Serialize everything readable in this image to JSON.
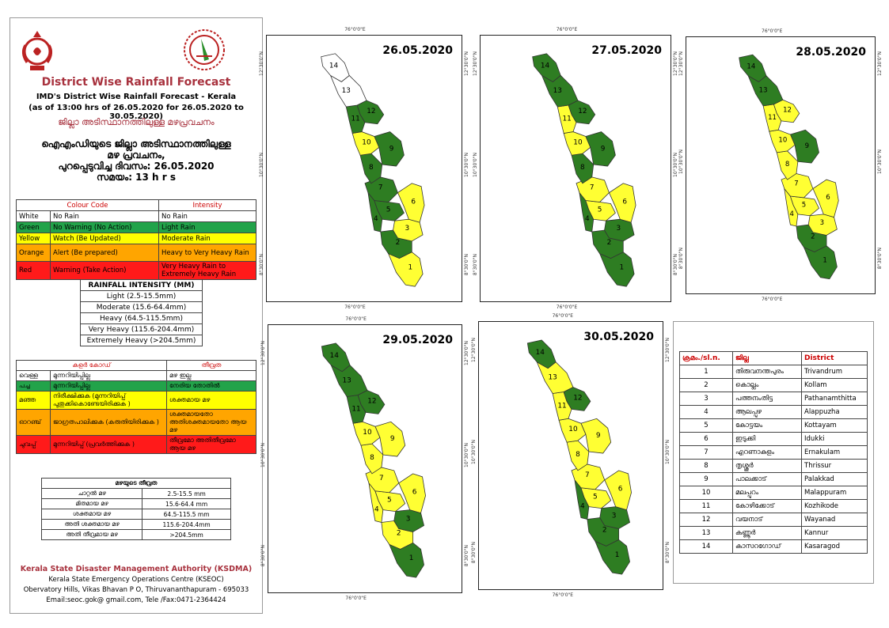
{
  "header": {
    "title": "District Wise Rainfall Forecast",
    "subtitle1": "IMD's District Wise Rainfall Forecast - Kerala",
    "subtitle2": "(as of 13:00 hrs of 26.05.2020  for 26.05.2020 to 30.05.2020)",
    "mal_title": "ജില്ലാ അടിസ്ഥാനത്തിലുള്ള മഴപ്രവചനം",
    "mal_line1": "ഐഎംഡിയുടെ ജില്ലാ  അടിസ്ഥാനത്തിലുള്ള",
    "mal_line2": "മഴ പ്രവചനം,",
    "mal_line3": "പുറപ്പെടുവിച്ച  ദിവസം: 26.05.2020",
    "mal_line4": "സമയം: 13 h r s"
  },
  "colour_table": {
    "h1": "Colour Code",
    "h2": "Intensity",
    "rows": [
      {
        "c": "White",
        "w": "No Rain",
        "i": "No Rain",
        "bg": "#ffffff"
      },
      {
        "c": "Green",
        "w": "No Warning (No Action)",
        "i": "Light Rain",
        "bg": "#22a34a"
      },
      {
        "c": "Yellow",
        "w": "Watch (Be Updated)",
        "i": "Moderate Rain",
        "bg": "#ffff00"
      },
      {
        "c": "Orange",
        "w": "Alert (Be prepared)",
        "i": "Heavy to Very Heavy Rain",
        "bg": "#ffa500"
      },
      {
        "c": "Red",
        "w": "Warning (Take Action)",
        "i": "Very Heavy Rain to Extremely Heavy Rain",
        "bg": "#ff1a1a"
      }
    ]
  },
  "intensity_table": {
    "head": "RAINFALL INTENSITY (MM)",
    "rows": [
      "Light (2.5-15.5mm)",
      "Moderate (15.6-64.4mm)",
      "Heavy (64.5-115.5mm)",
      "Very Heavy (115.6-204.4mm)",
      "Extremely Heavy (>204.5mm)"
    ]
  },
  "mal_colour_table": {
    "h1": "കളർ കോഡ്",
    "h2": "തീവ്രത",
    "rows": [
      {
        "c": "വെള്ള",
        "w": "മുന്നറിയിപ്പില്ല",
        "i": "മഴ ഇല്ല",
        "bg": "#ffffff"
      },
      {
        "c": "പച്ച",
        "w": "മുന്നറിയിപ്പില്ല",
        "i": "നേരിയ തോതിൽ",
        "bg": "#22a34a"
      },
      {
        "c": "മഞ്ഞ",
        "w": "നിരീക്ഷിക്കുക (മുന്നറിയിപ്പ് പുതുക്കികൊണ്ടേയിരിക്കുക )",
        "i": "ശക്തമായ മഴ",
        "bg": "#ffff00"
      },
      {
        "c": "ഓറഞ്ച്",
        "w": "ജാഗ്രതപാലിക്കുക (കരുതിയിരിക്കുക )",
        "i": "ശക്തമായതോ അതിശക്തമായതോ ആയ മഴ",
        "bg": "#ffa500"
      },
      {
        "c": "ചുവപ്പ്",
        "w": "മുന്നറിയിപ്പ് (പ്രവർത്തിക്കുക )",
        "i": "തീവ്രമോ അതിതീവ്രമോ ആയ മഴ",
        "bg": "#ff1a1a"
      }
    ]
  },
  "mal_intensity_table": {
    "head": "മഴയുടെ തീവ്രത",
    "rows": [
      {
        "n": "ചാറ്റൽ മഴ",
        "v": "2.5-15.5 mm"
      },
      {
        "n": "മിതമായ മഴ",
        "v": "15.6-64.4 mm"
      },
      {
        "n": "ശക്തമായ മഴ",
        "v": "64.5-115.5 mm"
      },
      {
        "n": "അതി ശക്തമായ മഴ",
        "v": "115.6-204.4mm"
      },
      {
        "n": "അതി തീവ്രമായ മഴ",
        "v": ">204.5mm"
      }
    ]
  },
  "footer": {
    "org": "Kerala State Disaster Management Authority (KSDMA)",
    "line1": "Kerala State Emergency Operations Centre (KSEOC)",
    "line2": "Obervatory Hills, Vikas Bhavan P O, Thiruvananthapuram - 695033",
    "line3": "Email:seoc.gok@ gmail.com, Tele /Fax:0471-2364424"
  },
  "map_labels": {
    "lon": "76°0'0\"E",
    "lat_top": "12°30'0\"N",
    "lat_mid": "10°30'0\"N",
    "lat_bot": "8°30'0\"N"
  },
  "maps": [
    {
      "date": "26.05.2020",
      "colors": {
        "1": "Y",
        "2": "G",
        "3": "Y",
        "4": "G",
        "5": "G",
        "6": "Y",
        "7": "G",
        "8": "G",
        "9": "G",
        "10": "Y",
        "11": "G",
        "12": "G",
        "13": "W",
        "14": "W"
      }
    },
    {
      "date": "27.05.2020",
      "colors": {
        "1": "G",
        "2": "G",
        "3": "G",
        "4": "G",
        "5": "Y",
        "6": "Y",
        "7": "Y",
        "8": "G",
        "9": "G",
        "10": "Y",
        "11": "Y",
        "12": "G",
        "13": "G",
        "14": "G"
      }
    },
    {
      "date": "28.05.2020",
      "colors": {
        "1": "G",
        "2": "G",
        "3": "Y",
        "4": "Y",
        "5": "Y",
        "6": "Y",
        "7": "Y",
        "8": "Y",
        "9": "G",
        "10": "Y",
        "11": "Y",
        "12": "Y",
        "13": "G",
        "14": "G"
      }
    },
    {
      "date": "29.05.2020",
      "colors": {
        "1": "G",
        "2": "Y",
        "3": "G",
        "4": "Y",
        "5": "Y",
        "6": "Y",
        "7": "Y",
        "8": "Y",
        "9": "Y",
        "10": "Y",
        "11": "G",
        "12": "G",
        "13": "G",
        "14": "G"
      }
    },
    {
      "date": "30.05.2020",
      "colors": {
        "1": "G",
        "2": "G",
        "3": "G",
        "4": "G",
        "5": "Y",
        "6": "Y",
        "7": "Y",
        "8": "Y",
        "9": "Y",
        "10": "Y",
        "11": "Y",
        "12": "G",
        "13": "Y",
        "14": "G"
      }
    }
  ],
  "district_table": {
    "h1": "ക്രമം./sl.n.",
    "h2": "ജില്ല",
    "h3": "District",
    "rows": [
      {
        "n": "1",
        "m": "തിരുവനന്തപുരം",
        "e": "Trivandrum"
      },
      {
        "n": "2",
        "m": "കൊല്ലം",
        "e": "Kollam"
      },
      {
        "n": "3",
        "m": "പത്തനംതിട്ട",
        "e": "Pathanamthitta"
      },
      {
        "n": "4",
        "m": "ആലപ്പുഴ",
        "e": "Alappuzha"
      },
      {
        "n": "5",
        "m": "കോട്ടയം",
        "e": "Kottayam"
      },
      {
        "n": "6",
        "m": "ഇടുക്കി",
        "e": "Idukki"
      },
      {
        "n": "7",
        "m": "എറണാകുളം",
        "e": "Ernakulam"
      },
      {
        "n": "8",
        "m": "തൃശ്ശൂർ",
        "e": "Thrissur"
      },
      {
        "n": "9",
        "m": "പാലക്കാട്",
        "e": "Palakkad"
      },
      {
        "n": "10",
        "m": "മലപ്പുറം",
        "e": "Malappuram"
      },
      {
        "n": "11",
        "m": "കോഴിക്കോട്",
        "e": "Kozhikode"
      },
      {
        "n": "12",
        "m": "വയനാട്",
        "e": "Wayanad"
      },
      {
        "n": "13",
        "m": "കണ്ണൂർ",
        "e": "Kannur"
      },
      {
        "n": "14",
        "m": "കാസറഗോഡ്",
        "e": "Kasaragod"
      }
    ]
  },
  "palette": {
    "W": "#ffffff",
    "G": "#2e7d22",
    "Y": "#ffff33"
  }
}
